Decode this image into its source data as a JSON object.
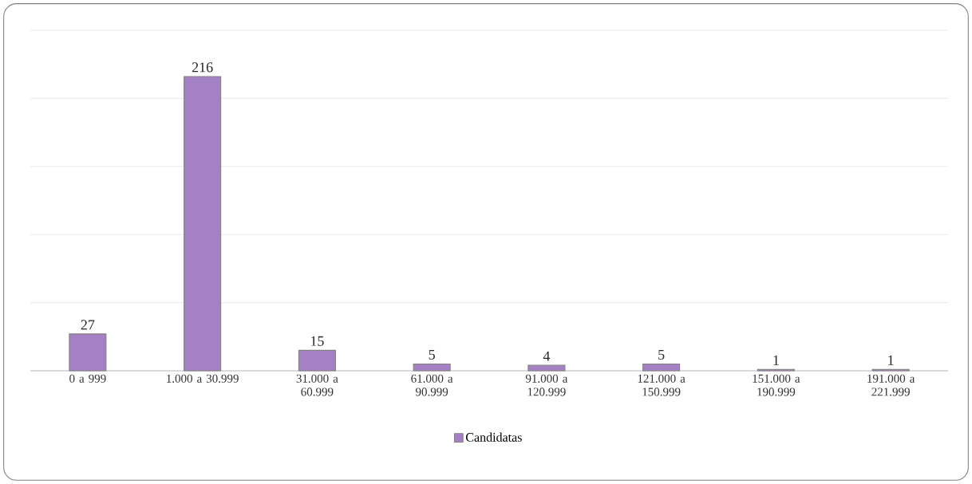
{
  "chart_data": {
    "type": "bar",
    "categories": [
      "0 a 999",
      "1.000 a 30.999",
      "31.000 a 60.999",
      "61.000 a 90.999",
      "91.000 a 120.999",
      "121.000 a 150.999",
      "151.000 a 190.999",
      "191.000 a 221.999"
    ],
    "series": [
      {
        "name": "Candidatas",
        "color": "#a680c4",
        "values": [
          27,
          216,
          15,
          5,
          4,
          5,
          1,
          1
        ]
      }
    ],
    "ylim": [
      0,
      250
    ],
    "grid": "y",
    "tick_labels": "x",
    "data_labels": true,
    "legend": "bottom"
  }
}
